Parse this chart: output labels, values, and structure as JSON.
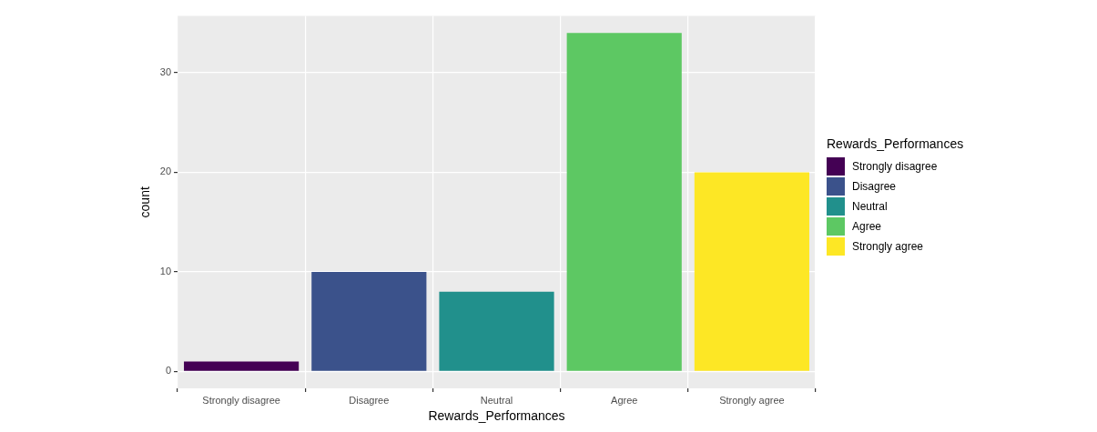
{
  "chart_data": {
    "type": "bar",
    "xlabel": "Rewards_Performances",
    "ylabel": "count",
    "legend_title": "Rewards_Performances",
    "categories": [
      "Strongly disagree",
      "Disagree",
      "Neutral",
      "Agree",
      "Strongly agree"
    ],
    "stacked": true,
    "series": [
      {
        "name": "Strongly disagree",
        "color": "#440154",
        "values": [
          1,
          null,
          null,
          null,
          null
        ]
      },
      {
        "name": "Disagree",
        "color": "#3b528b",
        "values": [
          null,
          10,
          null,
          null,
          null
        ]
      },
      {
        "name": "Neutral",
        "color": "#21908c",
        "values": [
          null,
          null,
          8,
          null,
          null
        ]
      },
      {
        "name": "Agree",
        "color": "#5dc863",
        "values": [
          null,
          null,
          null,
          34,
          null
        ]
      },
      {
        "name": "Strongly agree",
        "color": "#fde725",
        "values": [
          null,
          null,
          null,
          null,
          20
        ]
      }
    ],
    "ylim": [
      -1.7,
      35.7
    ],
    "yticks": [
      0,
      10,
      20,
      30
    ],
    "grid": true,
    "legend": "right"
  }
}
